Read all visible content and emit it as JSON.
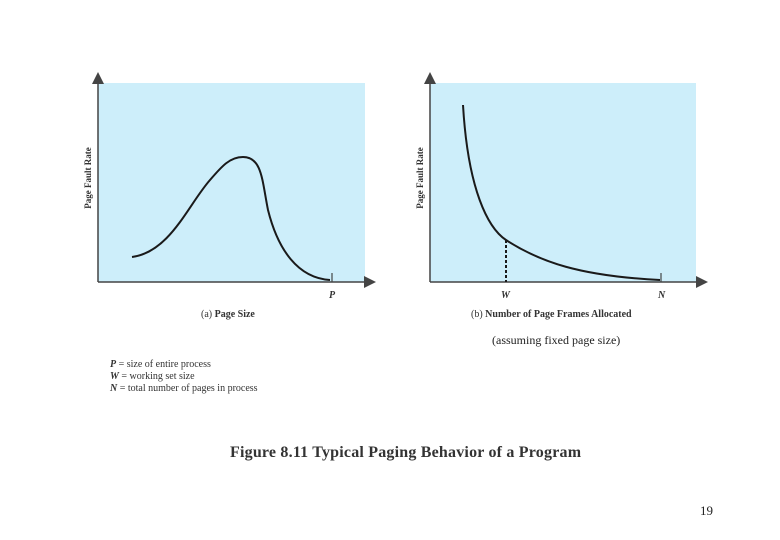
{
  "note": "(assuming fixed page size)",
  "figure_title": "Figure 8.11  Typical Paging Behavior of a Program",
  "page_number": "19",
  "legend": [
    {
      "symbol": "P",
      "text": " = size of entire process"
    },
    {
      "symbol": "W",
      "text": " = working set size"
    },
    {
      "symbol": "N",
      "text": " = total number of pages in process"
    }
  ],
  "panel_a": {
    "ylabel": "Page Fault Rate",
    "tick": "P",
    "caption_prefix": "(a) ",
    "caption": "Page Size"
  },
  "panel_b": {
    "ylabel": "Page Fault Rate",
    "tick_w": "W",
    "tick_n": "N",
    "caption_prefix": "(b) ",
    "caption": "Number of Page Frames Allocated"
  },
  "colors": {
    "plot_bg": "#cdeefa",
    "axis": "#444444",
    "curve": "#1a1a1a"
  }
}
